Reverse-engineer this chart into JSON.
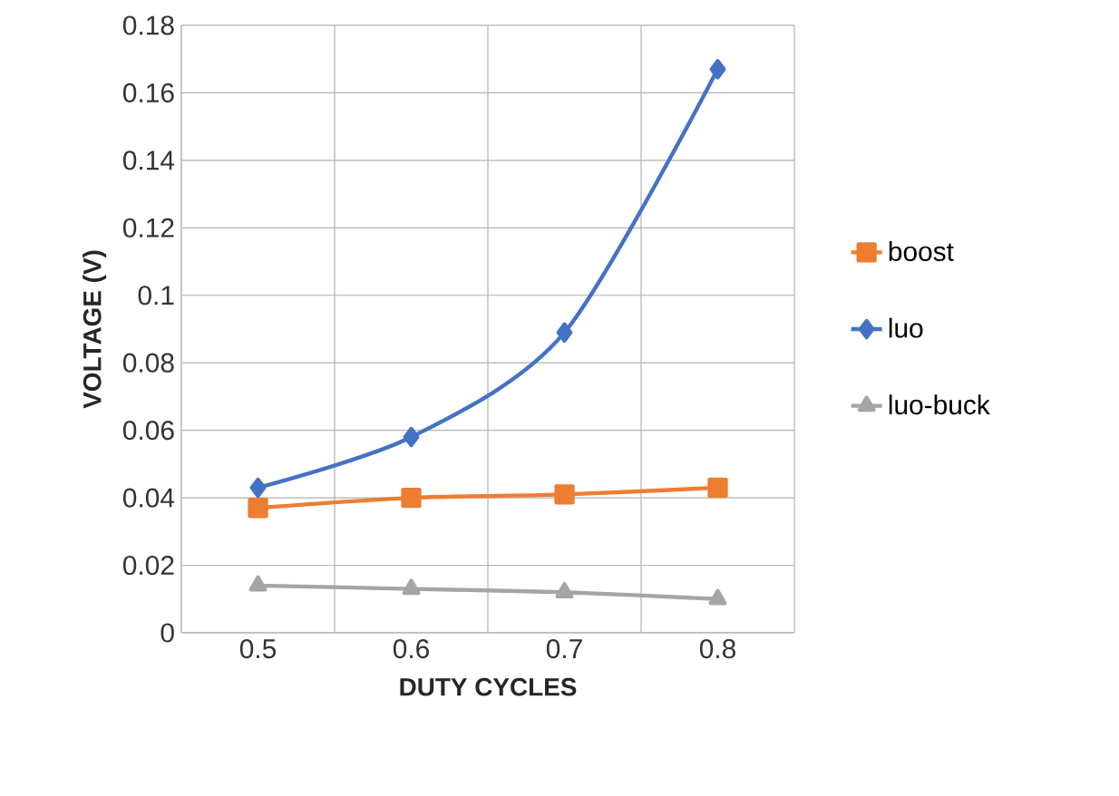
{
  "chart_data": {
    "type": "line",
    "xlabel": "DUTY CYCLES",
    "ylabel": "VOLTAGE (V)",
    "categories": [
      "0.5",
      "0.6",
      "0.7",
      "0.8"
    ],
    "series": [
      {
        "name": "boost",
        "color": "#ed7d31",
        "marker": "square",
        "values": [
          0.037,
          0.04,
          0.041,
          0.043
        ]
      },
      {
        "name": "luo",
        "color": "#4472c4",
        "marker": "diamond",
        "values": [
          0.043,
          0.058,
          0.089,
          0.167
        ]
      },
      {
        "name": "luo-buck",
        "color": "#a5a5a5",
        "marker": "triangle",
        "values": [
          0.014,
          0.013,
          0.012,
          0.01
        ]
      }
    ],
    "ylim": [
      0,
      0.18
    ],
    "yticks": [
      0,
      0.02,
      0.04,
      0.06,
      0.08,
      0.1,
      0.12,
      0.14,
      0.16,
      0.18
    ],
    "grid": true,
    "legend": "right",
    "line_style": "solid"
  }
}
